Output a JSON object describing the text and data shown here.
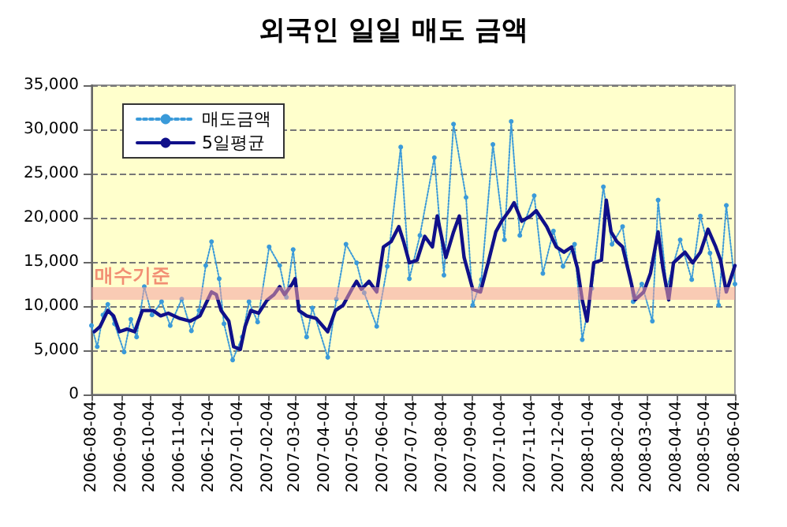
{
  "chart_data": {
    "type": "line",
    "title": "외국인 일일 매도 금액",
    "ylim": [
      0,
      35000
    ],
    "yticks": [
      0,
      {
        "value": 5000,
        "label": "5,000"
      },
      {
        "value": 10000,
        "label": "10,000"
      },
      {
        "value": 15000,
        "label": "15,000"
      },
      {
        "value": 20000,
        "label": "20,000"
      },
      {
        "value": 25000,
        "label": "25,000"
      },
      {
        "value": 30000,
        "label": "30,000"
      },
      {
        "value": 35000,
        "label": "35,000"
      }
    ],
    "xlim": [
      "2006-08-04",
      "2008-06-04"
    ],
    "xticks": [
      "2006-08-04",
      "2006-09-04",
      "2006-10-04",
      "2006-11-04",
      "2006-12-04",
      "2007-01-04",
      "2007-02-04",
      "2007-03-04",
      "2007-04-04",
      "2007-05-04",
      "2007-06-04",
      "2007-07-04",
      "2007-08-04",
      "2007-09-04",
      "2007-10-04",
      "2007-11-04",
      "2007-12-04",
      "2008-01-04",
      "2008-02-04",
      "2008-03-04",
      "2008-04-04",
      "2008-05-04",
      "2008-06-04"
    ],
    "grid": "y",
    "legend": "top left",
    "ref_lines": [
      {
        "axis": "y",
        "value": 11500,
        "label": "매수기준",
        "color": "#f4a0a0"
      }
    ],
    "series": [
      {
        "name": "매도금액",
        "color": "#3a9ad9",
        "marker": "circle",
        "line_style": "dotted",
        "x": [
          "2006-08-04",
          "2006-08-10",
          "2006-08-16",
          "2006-08-21",
          "2006-08-28",
          "2006-09-07",
          "2006-09-14",
          "2006-09-20",
          "2006-09-28",
          "2006-10-06",
          "2006-10-16",
          "2006-10-25",
          "2006-11-06",
          "2006-11-16",
          "2006-11-24",
          "2006-12-01",
          "2006-12-07",
          "2006-12-15",
          "2006-12-20",
          "2006-12-29",
          "2007-01-08",
          "2007-01-15",
          "2007-01-24",
          "2007-02-05",
          "2007-02-16",
          "2007-02-23",
          "2007-03-02",
          "2007-03-08",
          "2007-03-16",
          "2007-03-22",
          "2007-04-07",
          "2007-04-16",
          "2007-04-26",
          "2007-05-07",
          "2007-05-15",
          "2007-05-28",
          "2007-06-08",
          "2007-06-22",
          "2007-07-01",
          "2007-07-12",
          "2007-07-27",
          "2007-08-06",
          "2007-08-16",
          "2007-08-29",
          "2007-09-05",
          "2007-09-14",
          "2007-09-26",
          "2007-10-08",
          "2007-10-15",
          "2007-10-24",
          "2007-11-08",
          "2007-11-17",
          "2007-11-28",
          "2007-12-08",
          "2007-12-20",
          "2007-12-28",
          "2008-01-07",
          "2008-01-19",
          "2008-01-28",
          "2008-02-08",
          "2008-02-19",
          "2008-02-28",
          "2008-03-10",
          "2008-03-16",
          "2008-03-25",
          "2008-04-08",
          "2008-04-20",
          "2008-04-29",
          "2008-05-09",
          "2008-05-18",
          "2008-05-26",
          "2008-06-04"
        ],
        "values": [
          7800,
          5400,
          9000,
          10200,
          8000,
          4800,
          8500,
          6500,
          12200,
          9000,
          10500,
          7800,
          10800,
          7200,
          9500,
          14600,
          17300,
          13100,
          8000,
          3900,
          6500,
          10500,
          8200,
          16700,
          14600,
          11000,
          16400,
          10000,
          6500,
          9800,
          4200,
          10800,
          17000,
          14900,
          11500,
          7700,
          14500,
          28000,
          13100,
          18000,
          26800,
          13500,
          30600,
          22300,
          10100,
          13000,
          28300,
          17500,
          30900,
          18000,
          22500,
          13700,
          18500,
          14500,
          17000,
          6200,
          12000,
          23500,
          17000,
          19000,
          10500,
          12500,
          8300,
          22000,
          12000,
          17500,
          13000,
          20200,
          16000,
          10100,
          21400,
          12500
        ]
      },
      {
        "name": "5일평균",
        "color": "#10108a",
        "marker": "none",
        "line_style": "solid",
        "x": [
          "2006-08-07",
          "2006-08-13",
          "2006-08-21",
          "2006-08-27",
          "2006-09-02",
          "2006-09-10",
          "2006-09-18",
          "2006-09-26",
          "2006-10-07",
          "2006-10-15",
          "2006-10-23",
          "2006-11-04",
          "2006-11-15",
          "2006-11-25",
          "2006-12-07",
          "2006-12-12",
          "2006-12-17",
          "2006-12-25",
          "2006-12-30",
          "2007-01-06",
          "2007-01-11",
          "2007-01-17",
          "2007-01-25",
          "2007-02-03",
          "2007-02-10",
          "2007-02-16",
          "2007-02-21",
          "2007-03-01",
          "2007-03-04",
          "2007-03-08",
          "2007-03-16",
          "2007-03-26",
          "2007-04-07",
          "2007-04-15",
          "2007-04-23",
          "2007-05-02",
          "2007-05-07",
          "2007-05-12",
          "2007-05-20",
          "2007-05-28",
          "2007-06-04",
          "2007-06-12",
          "2007-06-20",
          "2007-06-25",
          "2007-07-01",
          "2007-07-09",
          "2007-07-17",
          "2007-07-25",
          "2007-07-30",
          "2007-08-08",
          "2007-08-16",
          "2007-08-22",
          "2007-08-27",
          "2007-09-05",
          "2007-09-13",
          "2007-09-21",
          "2007-09-29",
          "2007-10-05",
          "2007-10-13",
          "2007-10-18",
          "2007-10-26",
          "2007-11-04",
          "2007-11-10",
          "2007-11-21",
          "2007-12-01",
          "2007-12-09",
          "2007-12-17",
          "2007-12-23",
          "2007-12-28",
          "2008-01-02",
          "2008-01-09",
          "2008-01-17",
          "2008-01-22",
          "2008-01-27",
          "2008-02-02",
          "2008-02-08",
          "2008-02-16",
          "2008-02-21",
          "2008-03-01",
          "2008-03-08",
          "2008-03-16",
          "2008-03-21",
          "2008-03-27",
          "2008-04-01",
          "2008-04-13",
          "2008-04-21",
          "2008-04-29",
          "2008-05-07",
          "2008-05-15",
          "2008-05-20",
          "2008-05-26",
          "2008-06-04"
        ],
        "values": [
          7100,
          7700,
          9500,
          8900,
          7100,
          7400,
          7100,
          9500,
          9500,
          8900,
          9200,
          8600,
          8300,
          8900,
          11600,
          11300,
          9500,
          8300,
          5400,
          5100,
          7700,
          9500,
          9200,
          10700,
          11300,
          12200,
          11300,
          12500,
          13100,
          9500,
          8900,
          8600,
          7100,
          9500,
          10100,
          11900,
          12800,
          11900,
          12800,
          11600,
          16700,
          17300,
          19000,
          17300,
          14900,
          15200,
          17900,
          16700,
          20200,
          15500,
          18400,
          20200,
          15500,
          11900,
          11600,
          14900,
          18400,
          19600,
          20800,
          21700,
          19600,
          20200,
          20800,
          19000,
          16700,
          16100,
          16700,
          14300,
          10700,
          8300,
          14900,
          15200,
          22000,
          18400,
          17300,
          16700,
          13100,
          10700,
          11600,
          13700,
          18400,
          14300,
          10700,
          14900,
          16100,
          14900,
          16100,
          18700,
          16700,
          15200,
          11600,
          14600
        ]
      }
    ]
  }
}
